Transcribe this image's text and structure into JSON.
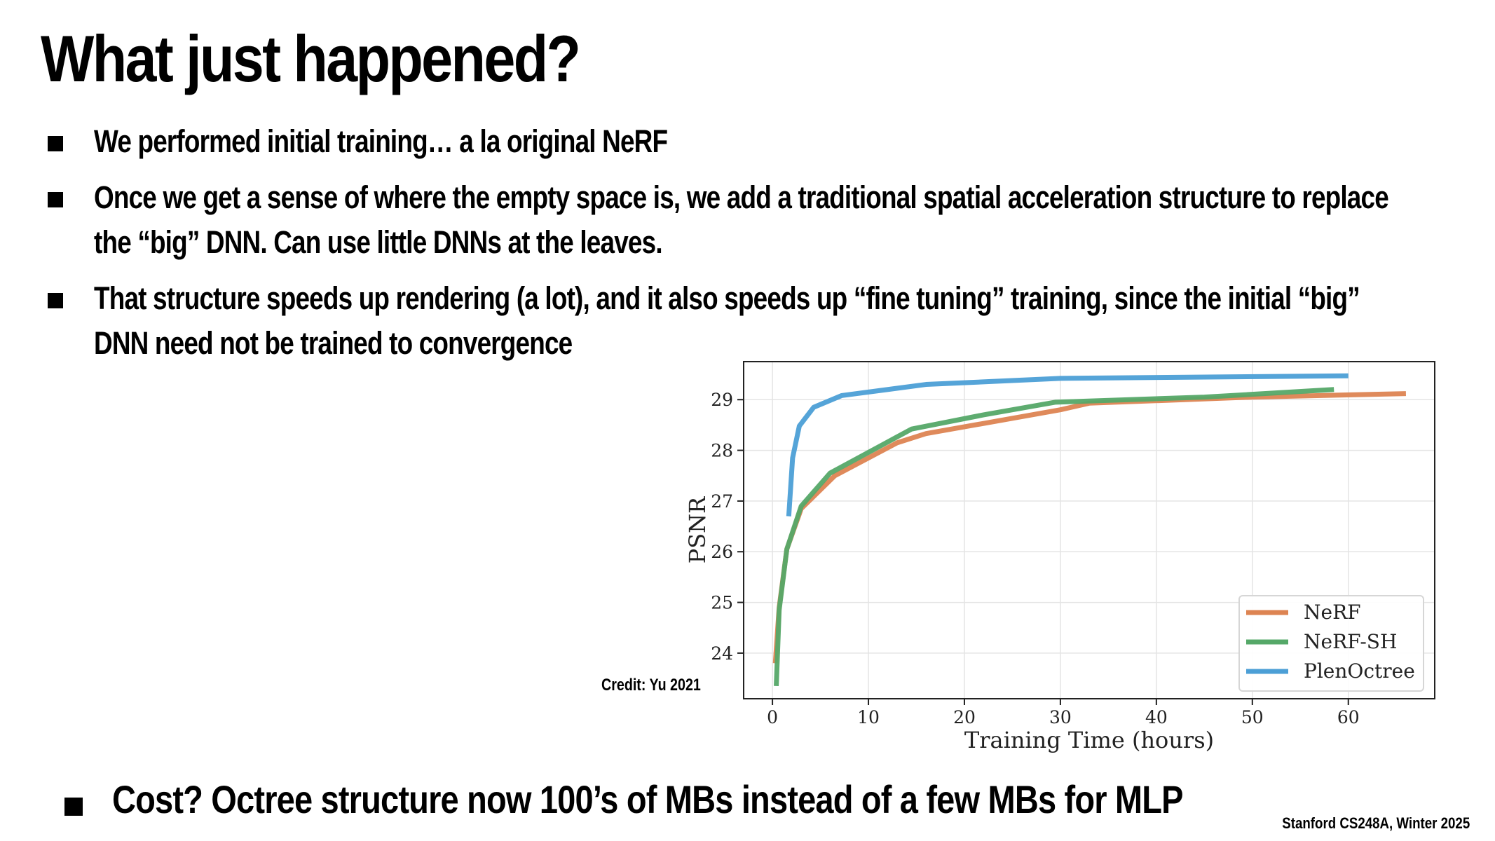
{
  "slide": {
    "title": "What just happened?",
    "bullets": [
      "We performed initial training… a la original NeRF",
      "Once we get a sense of where the empty space is, we add a traditional spatial acceleration structure to replace the “big” DNN.  Can use little DNNs at the leaves.",
      "That structure speeds up rendering (a lot), and it also speeds up “fine tuning” training, since the initial “big” DNN need not be trained to convergence"
    ],
    "bottom_bullet": "Cost? Octree structure now 100’s of MBs instead of a few MBs for MLP",
    "credit": "Credit: Yu 2021",
    "footer": "Stanford CS248A, Winter 2025"
  },
  "chart_data": {
    "type": "line",
    "title": "",
    "xlabel": "Training Time (hours)",
    "ylabel": "PSNR",
    "xlim": [
      -3,
      69
    ],
    "ylim": [
      23.1,
      29.75
    ],
    "xticks": [
      0,
      10,
      20,
      30,
      40,
      50,
      60
    ],
    "yticks": [
      24,
      25,
      26,
      27,
      28,
      29
    ],
    "grid": true,
    "legend_position": "lower-right",
    "series": [
      {
        "name": "NeRF",
        "color": "#dd8452",
        "x": [
          0.3,
          0.7,
          1.5,
          3,
          6.5,
          13,
          16,
          30,
          33,
          50,
          66
        ],
        "y": [
          23.8,
          24.9,
          26.05,
          26.85,
          27.5,
          28.15,
          28.33,
          28.8,
          28.93,
          29.05,
          29.12
        ]
      },
      {
        "name": "NeRF-SH",
        "color": "#55a868",
        "x": [
          0.4,
          0.7,
          1.5,
          3,
          6,
          14.5,
          22,
          29.5,
          45,
          58.5
        ],
        "y": [
          23.35,
          24.85,
          26.05,
          26.9,
          27.55,
          28.42,
          28.7,
          28.95,
          29.05,
          29.2
        ]
      },
      {
        "name": "PlenOctree",
        "color": "#4c9fd6",
        "x": [
          1.7,
          2.1,
          2.8,
          4.3,
          7.2,
          16,
          30,
          60
        ],
        "y": [
          26.7,
          27.85,
          28.48,
          28.85,
          29.08,
          29.3,
          29.42,
          29.47
        ]
      }
    ]
  }
}
